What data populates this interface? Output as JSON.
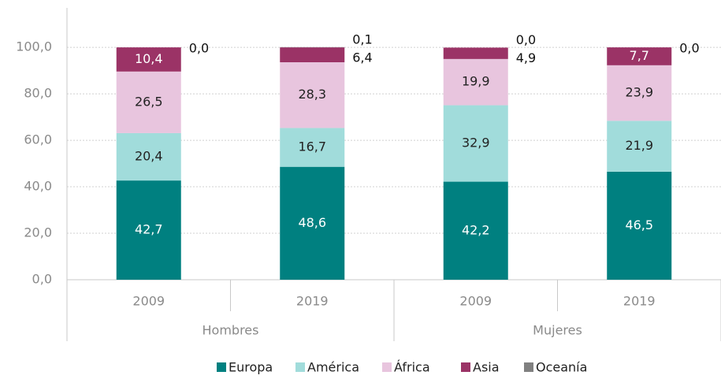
{
  "chart_data": {
    "type": "stacked_bar",
    "categories": [
      "2009",
      "2019",
      "2009",
      "2019"
    ],
    "group_labels": [
      "Hombres",
      "Mujeres"
    ],
    "series": [
      {
        "name": "Europa",
        "color": "#008080",
        "values": [
          42.7,
          48.6,
          42.2,
          46.5
        ],
        "value_labels": [
          "42,7",
          "48,6",
          "42,2",
          "46,5"
        ]
      },
      {
        "name": "América",
        "color": "#a1dcdb",
        "values": [
          20.4,
          16.7,
          32.9,
          21.9
        ],
        "value_labels": [
          "20,4",
          "16,7",
          "32,9",
          "21,9"
        ]
      },
      {
        "name": "África",
        "color": "#e8c5de",
        "values": [
          26.5,
          28.3,
          19.9,
          23.9
        ],
        "value_labels": [
          "26,5",
          "28,3",
          "19,9",
          "23,9"
        ]
      },
      {
        "name": "Asia",
        "color": "#9b3366",
        "values": [
          10.4,
          6.4,
          4.9,
          7.7
        ],
        "value_labels": [
          "10,4",
          "6,4",
          "4,9",
          "7,7"
        ]
      },
      {
        "name": "Oceanía",
        "color": "#808080",
        "values": [
          0.0,
          0.1,
          0.0,
          0.0
        ],
        "value_labels": [
          "0,0",
          "0,1",
          "0,0",
          "0,0"
        ]
      }
    ],
    "ylim": [
      0,
      117
    ],
    "yticks": [
      {
        "value": 0,
        "label": "0,0"
      },
      {
        "value": 20,
        "label": "20,0"
      },
      {
        "value": 40,
        "label": "40,0"
      },
      {
        "value": 60,
        "label": "60,0"
      },
      {
        "value": 80,
        "label": "80,0"
      },
      {
        "value": 100,
        "label": "100,0"
      }
    ],
    "grid": true,
    "legend": "bottom"
  }
}
